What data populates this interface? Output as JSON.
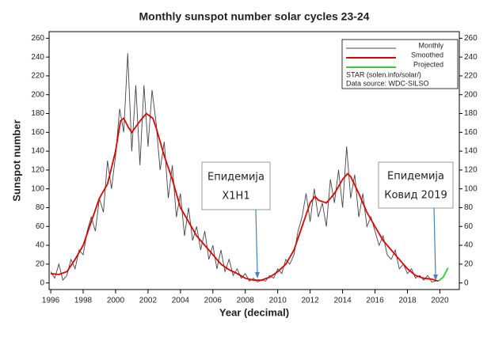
{
  "chart_data": {
    "type": "line",
    "title": "Monthly sunspot number solar cycles 23-24",
    "xlabel": "Year (decimal)",
    "ylabel": "Sunspot number",
    "xlim": [
      1995.9,
      2021.2
    ],
    "ylim": [
      -7,
      267
    ],
    "xticks": [
      1996,
      1998,
      2000,
      2002,
      2004,
      2006,
      2008,
      2010,
      2012,
      2014,
      2016,
      2018,
      2020
    ],
    "yticks": [
      0,
      20,
      40,
      60,
      80,
      100,
      120,
      140,
      160,
      180,
      200,
      220,
      240,
      260
    ],
    "legend": "upper right",
    "notes": [
      "STAR (solen.info/solar/)",
      "Data source: WDC-SILSO"
    ],
    "annotations": [
      [
        "Епидемија",
        "Х1Н1"
      ],
      [
        "Епидемија",
        "Ковид 2019"
      ]
    ],
    "series": [
      {
        "name": "Monthly",
        "color": "#444444",
        "x": [
          1996.0,
          1996.25,
          1996.5,
          1996.75,
          1997.0,
          1997.25,
          1997.5,
          1997.75,
          1998.0,
          1998.25,
          1998.5,
          1998.75,
          1999.0,
          1999.25,
          1999.5,
          1999.75,
          2000.0,
          2000.25,
          2000.5,
          2000.75,
          2001.0,
          2001.25,
          2001.5,
          2001.75,
          2002.0,
          2002.25,
          2002.5,
          2002.75,
          2003.0,
          2003.25,
          2003.5,
          2003.75,
          2004.0,
          2004.25,
          2004.5,
          2004.75,
          2005.0,
          2005.25,
          2005.5,
          2005.75,
          2006.0,
          2006.25,
          2006.5,
          2006.75,
          2007.0,
          2007.25,
          2007.5,
          2007.75,
          2008.0,
          2008.25,
          2008.5,
          2008.75,
          2009.0,
          2009.25,
          2009.5,
          2009.75,
          2010.0,
          2010.25,
          2010.5,
          2010.75,
          2011.0,
          2011.25,
          2011.5,
          2011.75,
          2012.0,
          2012.25,
          2012.5,
          2012.75,
          2013.0,
          2013.25,
          2013.5,
          2013.75,
          2014.0,
          2014.25,
          2014.5,
          2014.75,
          2015.0,
          2015.25,
          2015.5,
          2015.75,
          2016.0,
          2016.25,
          2016.5,
          2016.75,
          2017.0,
          2017.25,
          2017.5,
          2017.75,
          2018.0,
          2018.25,
          2018.5,
          2018.75,
          2019.0,
          2019.25,
          2019.5,
          2019.75,
          2020.0,
          2020.25
        ],
        "values": [
          12,
          5,
          20,
          3,
          8,
          25,
          15,
          35,
          30,
          55,
          70,
          55,
          90,
          75,
          130,
          100,
          135,
          185,
          160,
          244,
          140,
          210,
          125,
          210,
          145,
          205,
          170,
          120,
          150,
          90,
          125,
          70,
          95,
          50,
          80,
          45,
          60,
          35,
          55,
          25,
          40,
          15,
          35,
          12,
          25,
          8,
          15,
          5,
          10,
          2,
          5,
          1,
          3,
          2,
          8,
          5,
          15,
          10,
          25,
          20,
          30,
          55,
          70,
          95,
          65,
          100,
          70,
          85,
          60,
          110,
          85,
          120,
          80,
          145,
          90,
          115,
          70,
          95,
          60,
          70,
          55,
          40,
          50,
          30,
          25,
          35,
          15,
          20,
          10,
          15,
          5,
          8,
          3,
          8,
          1,
          2,
          3,
          7
        ]
      },
      {
        "name": "Smoothed",
        "color": "#e00000",
        "x": [
          1996.0,
          1996.5,
          1997.0,
          1997.5,
          1998.0,
          1998.5,
          1999.0,
          1999.5,
          2000.0,
          2000.3,
          2000.5,
          2000.8,
          2001.0,
          2001.5,
          2001.9,
          2002.3,
          2002.5,
          2003.0,
          2003.5,
          2004.0,
          2004.5,
          2005.0,
          2005.5,
          2006.0,
          2006.5,
          2007.0,
          2007.5,
          2008.0,
          2008.5,
          2009.0,
          2009.5,
          2010.0,
          2010.5,
          2011.0,
          2011.5,
          2012.0,
          2012.3,
          2012.5,
          2013.0,
          2013.5,
          2014.0,
          2014.3,
          2014.5,
          2015.0,
          2015.5,
          2016.0,
          2016.5,
          2017.0,
          2017.5,
          2018.0,
          2018.5,
          2019.0,
          2019.5,
          2019.9
        ],
        "values": [
          10,
          9,
          12,
          25,
          40,
          65,
          90,
          105,
          140,
          172,
          175,
          165,
          160,
          172,
          180,
          175,
          165,
          135,
          110,
          80,
          65,
          50,
          40,
          30,
          20,
          14,
          10,
          5,
          3,
          3,
          6,
          12,
          20,
          35,
          60,
          85,
          92,
          88,
          85,
          95,
          110,
          116,
          113,
          95,
          75,
          60,
          45,
          35,
          25,
          15,
          8,
          5,
          4,
          2
        ]
      },
      {
        "name": "Projected",
        "color": "#33cc33",
        "x": [
          2019.9,
          2020.2,
          2020.5
        ],
        "values": [
          2,
          6,
          16
        ]
      }
    ]
  }
}
